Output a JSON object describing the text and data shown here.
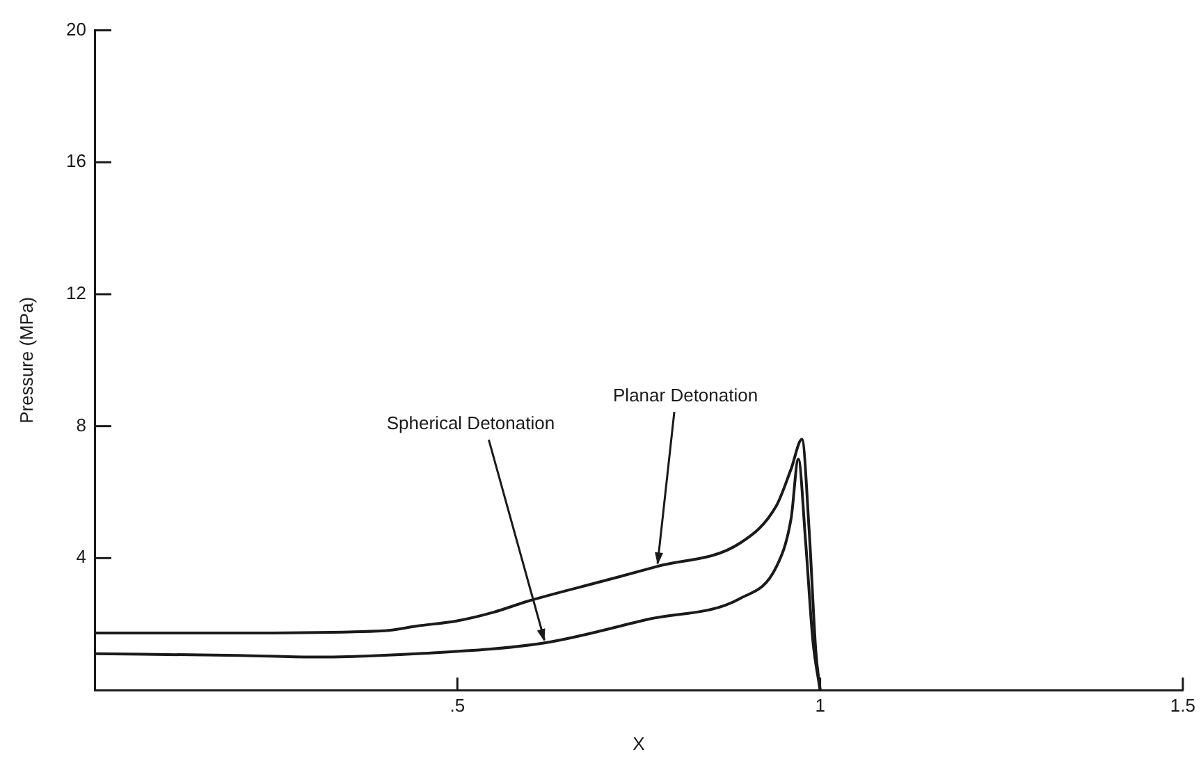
{
  "chart_data": {
    "type": "line",
    "xlabel": "X",
    "ylabel": "Pressure (MPa)",
    "xlim": [
      0,
      1.5
    ],
    "ylim": [
      0,
      20
    ],
    "xticks": [
      {
        "value": 0.5,
        "label": ".5"
      },
      1,
      1.5
    ],
    "yticks": [
      4,
      8,
      12,
      16,
      20
    ],
    "grid": false,
    "legend": false,
    "marker": "none",
    "line_style": "solid",
    "series": [
      {
        "color": "#1a1a1a",
        "x": [
          0,
          0.2,
          0.4,
          0.444,
          0.5,
          0.55,
          0.598,
          0.7,
          0.776,
          0.89,
          0.94,
          0.96,
          0.975,
          0.985,
          0.994,
          1.0
        ],
        "values": [
          1.73,
          1.73,
          1.8,
          1.94,
          2.1,
          2.36,
          2.7,
          3.3,
          3.75,
          4.46,
          5.6,
          6.7,
          7.6,
          4.8,
          1.2,
          0
        ]
      },
      {
        "color": "#1a1a1a",
        "x": [
          0,
          0.2,
          0.3,
          0.444,
          0.62,
          0.764,
          0.89,
          0.94,
          0.96,
          0.97,
          0.98,
          0.99,
          1.0
        ],
        "values": [
          1.1,
          1.05,
          1.0,
          1.1,
          1.43,
          2.15,
          2.78,
          3.75,
          5.2,
          7.0,
          4.5,
          1.5,
          0
        ]
      }
    ],
    "annotations": [
      {
        "text": "Planar Detonation",
        "x": 0.776,
        "y": 3.75
      },
      {
        "text": "Spherical Detonation",
        "x": 0.62,
        "y": 1.43
      }
    ]
  }
}
